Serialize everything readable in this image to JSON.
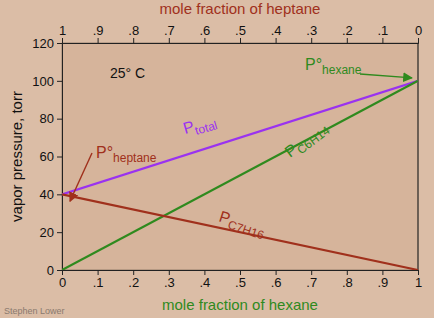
{
  "chart_data": {
    "type": "line",
    "title": "25° C",
    "x_label": "mole fraction of hexane",
    "x2_label": "mole fraction of heptane",
    "y_label": "vapor pressure, torr",
    "x": [
      0,
      1
    ],
    "series": [
      {
        "name": "Ptotal",
        "color": "#9a32f0",
        "values": [
          40,
          100
        ]
      },
      {
        "name": "PC6H14",
        "color": "#2f8a1e",
        "values": [
          0,
          100
        ]
      },
      {
        "name": "PC7H16",
        "color": "#a0301c",
        "values": [
          40,
          0
        ]
      }
    ],
    "xlim": [
      0,
      1
    ],
    "xticks": [
      0,
      {
        "value": 0.1,
        "label": ".1"
      },
      {
        "value": 0.2,
        "label": ".2"
      },
      {
        "value": 0.3,
        "label": ".3"
      },
      {
        "value": 0.4,
        "label": ".4"
      },
      {
        "value": 0.5,
        "label": ".5"
      },
      {
        "value": 0.6,
        "label": ".6"
      },
      {
        "value": 0.7,
        "label": ".7"
      },
      {
        "value": 0.8,
        "label": ".8"
      },
      {
        "value": 0.9,
        "label": ".9"
      },
      1
    ],
    "x2lim": [
      1,
      0
    ],
    "x2ticks": [
      1,
      {
        "value": 0.9,
        "label": ".9"
      },
      {
        "value": 0.8,
        "label": ".8"
      },
      {
        "value": 0.7,
        "label": ".7"
      },
      {
        "value": 0.6,
        "label": ".6"
      },
      {
        "value": 0.5,
        "label": ".5"
      },
      {
        "value": 0.4,
        "label": ".4"
      },
      {
        "value": 0.3,
        "label": ".3"
      },
      {
        "value": 0.2,
        "label": ".2"
      },
      {
        "value": 0.1,
        "label": ".1"
      },
      0
    ],
    "ylim": [
      0,
      120
    ],
    "yticks": [
      0,
      20,
      40,
      60,
      80,
      100,
      120
    ],
    "grid": false,
    "annotations": [
      {
        "text": "P°hexane",
        "x": 1,
        "y": 100,
        "color": "#2f8a1e"
      },
      {
        "text": "P°heptane",
        "x": 0,
        "y": 40,
        "color": "#a0301c"
      }
    ],
    "credit": "Stephen Lower"
  }
}
